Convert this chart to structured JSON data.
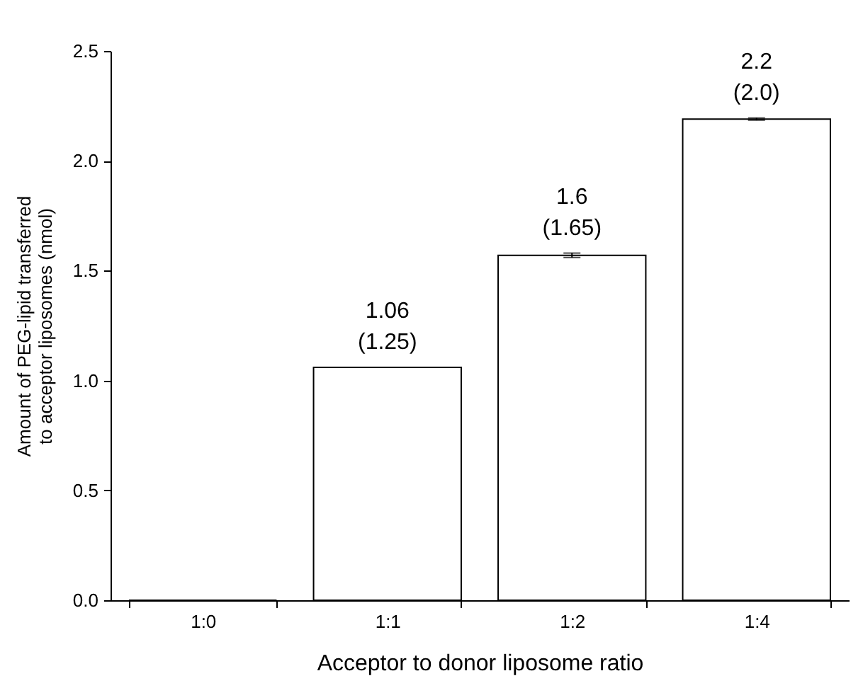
{
  "chart_data": {
    "type": "bar",
    "xlabel": "Acceptor to donor liposome ratio",
    "ylabel": "Amount of PEG-lipid transferred to acceptor liposomes (nmol)",
    "categories": [
      "1:0",
      "1:1",
      "1:2",
      "1:4"
    ],
    "values": [
      0,
      1.06,
      1.57,
      2.19
    ],
    "errors": [
      null,
      null,
      0.01,
      0.005
    ],
    "value_labels": [
      null,
      "1.06 (1.25)",
      "1.6 (1.65)",
      "2.2 (2.0)"
    ],
    "color": "#ffffff",
    "ylim": [
      0,
      2.5
    ],
    "yticks": [
      {
        "value": 0,
        "label": "0.0"
      },
      {
        "value": 0.5,
        "label": "0.5"
      },
      {
        "value": 1,
        "label": "1.0"
      },
      {
        "value": 1.5,
        "label": "1.5"
      },
      {
        "value": 2,
        "label": "2.0"
      },
      {
        "value": 2.5,
        "label": "2.5"
      }
    ],
    "grid": false
  }
}
